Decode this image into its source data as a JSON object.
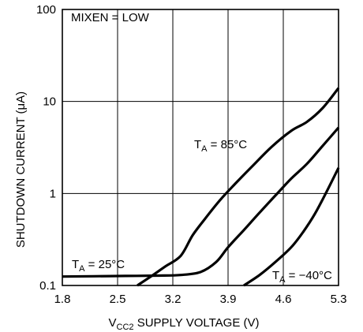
{
  "chart_data": {
    "type": "line",
    "ylabel": "SHUTDOWN CURRENT (μA)",
    "xlabel": {
      "prefix": "V",
      "subscript": "CC2",
      "suffix": " SUPPLY VOLTAGE (V)"
    },
    "condition": "MIXEN = LOW",
    "xlim": [
      1.8,
      5.3
    ],
    "ylim": [
      0.1,
      100
    ],
    "yscale": "log",
    "grid": true,
    "x_ticks": [
      "1.8",
      "2.5",
      "3.2",
      "3.9",
      "4.6",
      "5.3"
    ],
    "y_ticks": [
      "0.1",
      "1",
      "10",
      "100"
    ],
    "series": [
      {
        "label_parts": [
          "T",
          "A",
          " = 85°C"
        ],
        "x": [
          2.75,
          2.95,
          3.1,
          3.3,
          3.45,
          3.6,
          3.8,
          4.0,
          4.2,
          4.45,
          4.7,
          4.9,
          5.1,
          5.3
        ],
        "y": [
          0.1,
          0.13,
          0.16,
          0.21,
          0.35,
          0.52,
          0.85,
          1.3,
          1.95,
          3.2,
          4.8,
          6.0,
          8.5,
          14.0
        ]
      },
      {
        "label_parts": [
          "T",
          "A",
          " = 25°C"
        ],
        "x": [
          1.8,
          2.2,
          2.6,
          3.0,
          3.3,
          3.55,
          3.75,
          3.9,
          4.1,
          4.3,
          4.5,
          4.7,
          4.9,
          5.1,
          5.3
        ],
        "y": [
          0.125,
          0.126,
          0.127,
          0.128,
          0.13,
          0.14,
          0.18,
          0.26,
          0.4,
          0.62,
          0.95,
          1.45,
          2.1,
          3.3,
          5.2
        ]
      },
      {
        "label_parts": [
          "T",
          "A",
          " = −40°C"
        ],
        "x": [
          4.1,
          4.3,
          4.5,
          4.7,
          4.85,
          5.0,
          5.15,
          5.3
        ],
        "y": [
          0.1,
          0.13,
          0.18,
          0.26,
          0.38,
          0.6,
          1.05,
          1.9
        ]
      }
    ]
  }
}
